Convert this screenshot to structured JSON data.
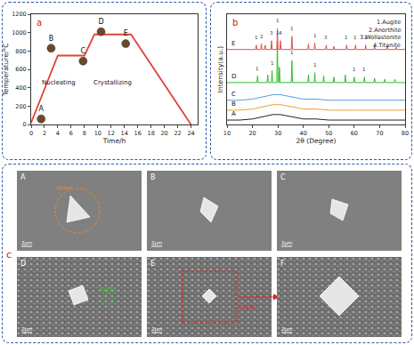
{
  "chart_data": [
    {
      "type": "line",
      "panel": "a",
      "x_label": "Time/h",
      "y_label": "Temperature/°C",
      "xlim": [
        0,
        25
      ],
      "xticks": [
        0,
        2,
        4,
        6,
        8,
        10,
        12,
        14,
        16,
        18,
        20,
        22,
        24
      ],
      "ylim": [
        0,
        1200
      ],
      "yticks": [
        0,
        200,
        400,
        600,
        800,
        1000,
        1200
      ],
      "grid": false,
      "series": [
        {
          "type": "line",
          "color": "#e0443a",
          "line_style": "solid",
          "x": [
            0,
            4,
            8,
            9.5,
            15,
            24
          ],
          "values": [
            20,
            750,
            750,
            980,
            980,
            0
          ]
        },
        {
          "type": "scatter",
          "color": "#6b4a2b",
          "marker": "circle",
          "x": [
            1.5,
            3,
            7.8,
            10.5,
            14.2
          ],
          "values": [
            60,
            830,
            690,
            1010,
            880
          ],
          "labels": [
            "A",
            "B",
            "C",
            "D",
            "E"
          ]
        }
      ],
      "annotations": [
        {
          "x": 4.2,
          "y": 450,
          "text": "Nucleating"
        },
        {
          "x": 12.2,
          "y": 450,
          "text": "Crystallizing"
        }
      ]
    },
    {
      "type": "line",
      "panel": "b",
      "x_label": "2θ (Degree)",
      "y_label": "Intensity(a.u.)",
      "xlim": [
        10,
        80
      ],
      "xticks": [
        10,
        20,
        30,
        40,
        50,
        60,
        70,
        80
      ],
      "ylim": [
        0,
        100
      ],
      "tick_labels": "x",
      "grid": false,
      "annotations": [
        "1.Augite",
        "2.Anorthite",
        "3.Wollastonite",
        "4.Titanite"
      ],
      "series": [
        {
          "name": "A",
          "color": "#222222",
          "line_style": "solid",
          "x": [
            10,
            15,
            20,
            24,
            28,
            31,
            35,
            40,
            45,
            50,
            60,
            70,
            80
          ],
          "values": [
            4,
            4,
            5,
            7,
            9,
            9,
            7,
            5,
            5,
            4,
            4,
            4,
            4
          ]
        },
        {
          "name": "B",
          "color": "#f0a030",
          "line_style": "solid",
          "x": [
            10,
            15,
            20,
            24,
            28,
            31,
            35,
            40,
            45,
            50,
            60,
            70,
            80
          ],
          "values": [
            13,
            13,
            14,
            16,
            18,
            18,
            16,
            14,
            14,
            13,
            13,
            13,
            13
          ]
        },
        {
          "name": "C",
          "color": "#5b9bd5",
          "line_style": "solid",
          "x": [
            10,
            15,
            20,
            24,
            28,
            31,
            35,
            40,
            45,
            50,
            60,
            70,
            80
          ],
          "values": [
            22,
            22,
            23,
            25,
            27,
            27,
            25,
            23,
            23,
            22,
            22,
            22,
            22
          ]
        },
        {
          "name": "D",
          "color": "#33bb33",
          "line_style": "solid",
          "x": [
            10,
            21.75,
            22,
            22.25,
            25.75,
            26,
            26.25,
            27.45,
            27.7,
            27.95,
            29.55,
            29.8,
            30.05,
            30.35,
            30.6,
            30.85,
            35.25,
            35.5,
            35.75,
            41.75,
            42,
            42.25,
            44.25,
            44.5,
            44.75,
            47.75,
            48,
            48.25,
            51.75,
            52,
            52.25,
            56.25,
            56.5,
            56.75,
            59.75,
            60,
            60.25,
            63.75,
            64,
            64.25,
            67.75,
            68,
            68.25,
            71.75,
            72,
            72.25,
            75.75,
            76,
            76.25,
            80
          ],
          "values": [
            38,
            38,
            44,
            38,
            38,
            45,
            38,
            38,
            49,
            38,
            38,
            76,
            38,
            38,
            52,
            38,
            38,
            58,
            38,
            38,
            45,
            38,
            38,
            47,
            38,
            38,
            44,
            38,
            38,
            43,
            38,
            38,
            45,
            38,
            38,
            43,
            38,
            38,
            43,
            38,
            38,
            42,
            38,
            38,
            41,
            38,
            38,
            41,
            38,
            38
          ],
          "peak_labels": [
            {
              "x": 22,
              "y": 47,
              "text": "1"
            },
            {
              "x": 27.7,
              "y": 52,
              "text": "1"
            },
            {
              "x": 29.8,
              "y": 79,
              "text": "1"
            },
            {
              "x": 35.5,
              "y": 61,
              "text": "1"
            },
            {
              "x": 44.5,
              "y": 50,
              "text": "1"
            },
            {
              "x": 60,
              "y": 46,
              "text": "1"
            },
            {
              "x": 64,
              "y": 46,
              "text": "1"
            }
          ]
        },
        {
          "name": "E",
          "color": "#e05050",
          "line_style": "solid",
          "x": [
            10,
            21.25,
            21.5,
            21.75,
            23.25,
            23.5,
            23.75,
            24.75,
            25,
            25.25,
            27.25,
            27.5,
            27.75,
            29.55,
            29.8,
            30.05,
            30.75,
            31,
            31.25,
            35.25,
            35.5,
            35.75,
            41.75,
            42,
            42.25,
            44.25,
            44.5,
            44.75,
            48.75,
            49,
            49.25,
            51.75,
            52,
            52.25,
            56.75,
            57,
            57.25,
            60.25,
            60.5,
            60.75,
            64.25,
            64.5,
            64.75,
            67.75,
            68,
            68.25,
            72.75,
            73,
            73.25,
            76.25,
            76.5,
            76.75,
            80
          ],
          "values": [
            68,
            68,
            72,
            68,
            68,
            73,
            68,
            68,
            72,
            68,
            68,
            76,
            68,
            68,
            87,
            68,
            68,
            76,
            68,
            68,
            80,
            68,
            68,
            73,
            68,
            68,
            74,
            68,
            68,
            72,
            68,
            68,
            71,
            68,
            68,
            72,
            68,
            68,
            72,
            68,
            68,
            72,
            68,
            68,
            71,
            68,
            68,
            71,
            68,
            68,
            70,
            68,
            68
          ],
          "peak_labels": [
            {
              "x": 21.5,
              "y": 75,
              "text": "1"
            },
            {
              "x": 23.5,
              "y": 76,
              "text": "2"
            },
            {
              "x": 27.5,
              "y": 79,
              "text": "3"
            },
            {
              "x": 29.8,
              "y": 90,
              "text": "1"
            },
            {
              "x": 31,
              "y": 79,
              "text": "4"
            },
            {
              "x": 35.5,
              "y": 83,
              "text": "1"
            },
            {
              "x": 44.5,
              "y": 77,
              "text": "1"
            },
            {
              "x": 49,
              "y": 75,
              "text": "3"
            },
            {
              "x": 57,
              "y": 75,
              "text": "1"
            },
            {
              "x": 60.5,
              "y": 75,
              "text": "1"
            },
            {
              "x": 64.5,
              "y": 75,
              "text": "1"
            }
          ]
        }
      ]
    }
  ],
  "panel_c": {
    "label": "c",
    "images": [
      {
        "label": "A",
        "scale": "2μm",
        "note": "spinel"
      },
      {
        "label": "B",
        "scale": "2μm"
      },
      {
        "label": "C",
        "scale": "2μm"
      },
      {
        "label": "D",
        "scale": "2μm",
        "note": "Augite"
      },
      {
        "label": "E",
        "scale": "2μm",
        "note": "augite"
      },
      {
        "label": "F",
        "scale": "2μm"
      }
    ]
  }
}
